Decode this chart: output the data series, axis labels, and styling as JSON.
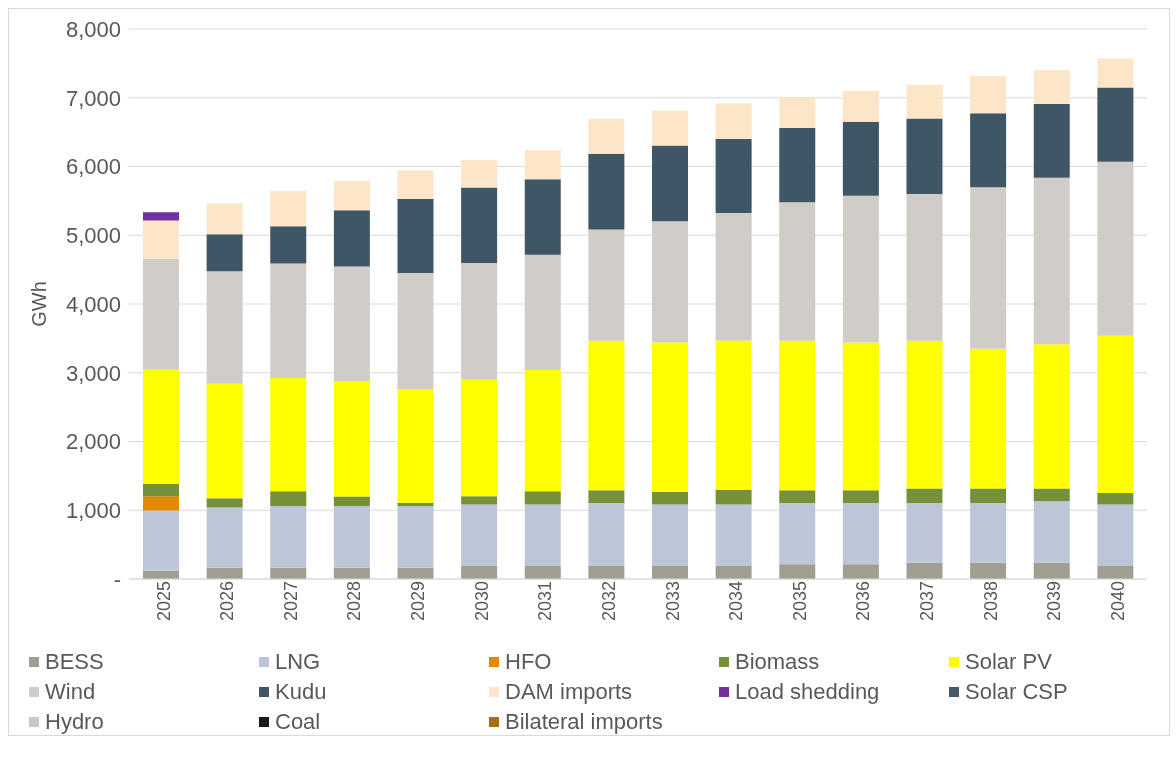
{
  "chart_data": {
    "type": "bar",
    "stacked": true,
    "ylabel": "GWh",
    "categories": [
      "2025",
      "2026",
      "2027",
      "2028",
      "2029",
      "2030",
      "2031",
      "2032",
      "2033",
      "2034",
      "2035",
      "2036",
      "2037",
      "2038",
      "2039",
      "2040"
    ],
    "series": [
      {
        "name": "BESS",
        "color": "#a09e90",
        "values": [
          125,
          165,
          165,
          165,
          165,
          190,
          190,
          190,
          190,
          190,
          215,
          215,
          235,
          235,
          235,
          190
        ]
      },
      {
        "name": "LNG",
        "color": "#bcc6d8",
        "values": [
          870,
          875,
          895,
          895,
          895,
          895,
          895,
          915,
          895,
          895,
          890,
          890,
          870,
          870,
          895,
          895
        ]
      },
      {
        "name": "HFO",
        "color": "#e08a00",
        "values": [
          210,
          0,
          0,
          0,
          0,
          0,
          0,
          0,
          0,
          0,
          0,
          0,
          0,
          0,
          0,
          0
        ]
      },
      {
        "name": "Biomass",
        "color": "#76913a",
        "values": [
          180,
          135,
          215,
          140,
          50,
          120,
          190,
          185,
          185,
          210,
          185,
          185,
          210,
          210,
          185,
          165
        ]
      },
      {
        "name": "Solar PV",
        "color": "#ffff00",
        "values": [
          1660,
          1665,
          1650,
          1675,
          1650,
          1695,
          1765,
          2175,
          2175,
          2175,
          2175,
          2150,
          2150,
          2035,
          2100,
          2290
        ]
      },
      {
        "name": "Wind",
        "color": "#d0cdc8",
        "values": [
          1610,
          1635,
          1665,
          1670,
          1690,
          1695,
          1675,
          1620,
          1760,
          1855,
          2015,
          2135,
          2135,
          2350,
          2420,
          2530
        ]
      },
      {
        "name": "Kudu",
        "color": "#3f5666",
        "values": [
          0,
          540,
          540,
          820,
          1080,
          1100,
          1100,
          1100,
          1100,
          1075,
          1080,
          1075,
          1100,
          1075,
          1075,
          1080
        ]
      },
      {
        "name": "DAM imports",
        "color": "#fde5c8",
        "values": [
          560,
          450,
          515,
          425,
          415,
          395,
          420,
          510,
          510,
          515,
          445,
          450,
          490,
          540,
          495,
          420
        ]
      },
      {
        "name": "Load shedding",
        "color": "#7030a0",
        "values": [
          120,
          0,
          0,
          0,
          0,
          0,
          0,
          0,
          0,
          0,
          0,
          0,
          0,
          0,
          0,
          0
        ]
      },
      {
        "name": "Solar CSP",
        "color": "#44596a",
        "values": [
          0,
          0,
          0,
          0,
          0,
          0,
          0,
          0,
          0,
          0,
          0,
          0,
          0,
          0,
          0,
          0
        ]
      },
      {
        "name": "Hydro",
        "color": "#c8c8cc",
        "values": [
          0,
          0,
          0,
          0,
          0,
          0,
          0,
          0,
          0,
          0,
          0,
          0,
          0,
          0,
          0,
          0
        ]
      },
      {
        "name": "Coal",
        "color": "#1a1a1a",
        "values": [
          0,
          0,
          0,
          0,
          0,
          0,
          0,
          0,
          0,
          0,
          0,
          0,
          0,
          0,
          0,
          0
        ]
      },
      {
        "name": "Bilateral imports",
        "color": "#a86f10",
        "values": [
          0,
          0,
          0,
          0,
          0,
          0,
          0,
          0,
          0,
          0,
          0,
          0,
          0,
          0,
          0,
          0
        ]
      }
    ],
    "ylim": [
      0,
      8000
    ],
    "yticks": [
      {
        "value": 0,
        "label": "-"
      },
      {
        "value": 1000,
        "label": "1,000"
      },
      {
        "value": 2000,
        "label": "2,000"
      },
      {
        "value": 3000,
        "label": "3,000"
      },
      {
        "value": 4000,
        "label": "4,000"
      },
      {
        "value": 5000,
        "label": "5,000"
      },
      {
        "value": 6000,
        "label": "6,000"
      },
      {
        "value": 7000,
        "label": "7,000"
      },
      {
        "value": 8000,
        "label": "8,000"
      }
    ],
    "grid": "y",
    "legend": "bottom"
  }
}
